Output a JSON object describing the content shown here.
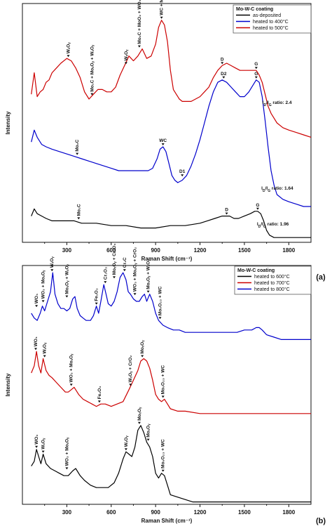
{
  "chart_data": [
    {
      "type": "line",
      "panel": "(a)",
      "xlabel": "Raman Shift (cm⁻¹)",
      "ylabel": "Intensity",
      "xlim": [
        0,
        1950
      ],
      "x_ticks": [
        "300",
        "600",
        "900",
        "1200",
        "1500",
        "1800"
      ],
      "y_ticks": false,
      "legend": {
        "title": "Mo-W-C coating",
        "position": "top-right",
        "entries": [
          {
            "name": "as-deposited",
            "color": "#000000"
          },
          {
            "name": "heated to 400°C",
            "color": "#0000cc"
          },
          {
            "name": "heated to 500°C",
            "color": "#cc0000"
          }
        ]
      },
      "series": [
        {
          "name": "heated to 500°C",
          "color": "#cc0000",
          "x": [
            60,
            80,
            100,
            120,
            140,
            160,
            180,
            200,
            230,
            260,
            300,
            330,
            360,
            390,
            420,
            450,
            480,
            510,
            540,
            570,
            600,
            630,
            660,
            690,
            720,
            750,
            780,
            810,
            840,
            870,
            900,
            920,
            940,
            960,
            980,
            1000,
            1020,
            1040,
            1060,
            1080,
            1110,
            1140,
            1170,
            1200,
            1230,
            1260,
            1290,
            1320,
            1350,
            1380,
            1410,
            1440,
            1470,
            1500,
            1530,
            1560,
            1580,
            1600,
            1620,
            1640,
            1660,
            1680,
            1700,
            1720,
            1760,
            1800,
            1850,
            1900,
            1950
          ],
          "y": [
            0.62,
            0.71,
            0.61,
            0.63,
            0.64,
            0.67,
            0.68,
            0.71,
            0.73,
            0.75,
            0.77,
            0.76,
            0.73,
            0.69,
            0.63,
            0.6,
            0.62,
            0.64,
            0.64,
            0.63,
            0.63,
            0.65,
            0.7,
            0.74,
            0.78,
            0.76,
            0.78,
            0.81,
            0.77,
            0.78,
            0.83,
            0.9,
            0.93,
            0.91,
            0.84,
            0.72,
            0.64,
            0.62,
            0.6,
            0.59,
            0.59,
            0.59,
            0.6,
            0.61,
            0.63,
            0.65,
            0.69,
            0.72,
            0.74,
            0.75,
            0.74,
            0.73,
            0.72,
            0.72,
            0.72,
            0.72,
            0.72,
            0.7,
            0.67,
            0.62,
            0.57,
            0.54,
            0.52,
            0.5,
            0.48,
            0.47,
            0.46,
            0.45,
            0.44
          ]
        },
        {
          "name": "heated to 400°C",
          "color": "#0000cc",
          "x": [
            60,
            80,
            100,
            130,
            160,
            200,
            250,
            300,
            350,
            400,
            450,
            500,
            550,
            600,
            650,
            700,
            750,
            800,
            850,
            880,
            910,
            930,
            950,
            970,
            990,
            1010,
            1030,
            1050,
            1080,
            1110,
            1140,
            1170,
            1200,
            1230,
            1260,
            1290,
            1320,
            1350,
            1380,
            1410,
            1440,
            1470,
            1500,
            1530,
            1560,
            1580,
            1600,
            1620,
            1640,
            1660,
            1680,
            1700,
            1720,
            1760,
            1800,
            1850,
            1900,
            1950
          ],
          "y": [
            0.42,
            0.47,
            0.44,
            0.41,
            0.4,
            0.39,
            0.38,
            0.37,
            0.36,
            0.35,
            0.34,
            0.33,
            0.32,
            0.31,
            0.3,
            0.3,
            0.3,
            0.3,
            0.3,
            0.31,
            0.35,
            0.39,
            0.4,
            0.38,
            0.33,
            0.28,
            0.26,
            0.25,
            0.26,
            0.28,
            0.32,
            0.37,
            0.43,
            0.5,
            0.57,
            0.63,
            0.67,
            0.68,
            0.67,
            0.65,
            0.63,
            0.61,
            0.61,
            0.63,
            0.66,
            0.68,
            0.67,
            0.61,
            0.51,
            0.4,
            0.3,
            0.24,
            0.2,
            0.18,
            0.17,
            0.16,
            0.15,
            0.15
          ]
        },
        {
          "name": "as-deposited",
          "color": "#000000",
          "x": [
            60,
            80,
            100,
            130,
            160,
            200,
            250,
            300,
            350,
            400,
            450,
            500,
            600,
            700,
            800,
            900,
            1000,
            1100,
            1200,
            1250,
            1300,
            1350,
            1380,
            1400,
            1430,
            1460,
            1500,
            1540,
            1570,
            1590,
            1610,
            1630,
            1650,
            1670,
            1700,
            1750,
            1800,
            1850,
            1900,
            1950
          ],
          "y": [
            0.11,
            0.14,
            0.12,
            0.11,
            0.1,
            0.09,
            0.09,
            0.09,
            0.09,
            0.08,
            0.08,
            0.08,
            0.07,
            0.07,
            0.06,
            0.06,
            0.07,
            0.07,
            0.08,
            0.09,
            0.1,
            0.11,
            0.11,
            0.11,
            0.1,
            0.1,
            0.11,
            0.12,
            0.13,
            0.13,
            0.12,
            0.09,
            0.05,
            0.03,
            0.02,
            0.02,
            0.02,
            0.02,
            0.02,
            0.02
          ]
        }
      ],
      "annotations": [
        {
          "text": "WₓOᵧ",
          "x": 310,
          "y": 0.77
        },
        {
          "text": "Mo₂C + MoₓOᵧ + WₓOᵧ",
          "x": 470,
          "y": 0.61
        },
        {
          "text": "WₓOᵧ",
          "x": 700,
          "y": 0.74
        },
        {
          "text": "Mo₂C + MoO₂ + WO₃",
          "x": 790,
          "y": 0.81
        },
        {
          "text": "WC + MoₓOᵧ",
          "x": 940,
          "y": 0.93
        },
        {
          "text": "D",
          "x": 1350,
          "y": 0.74
        },
        {
          "text": "G",
          "x": 1580,
          "y": 0.72
        },
        {
          "text": "I_D/I_G ratio: 2.4",
          "x": 1820,
          "y": 0.58
        },
        {
          "text": "Mo₂C",
          "x": 370,
          "y": 0.36
        },
        {
          "text": "WC",
          "x": 950,
          "y": 0.4
        },
        {
          "text": "D1",
          "x": 1080,
          "y": 0.27
        },
        {
          "text": "D2",
          "x": 1360,
          "y": 0.68
        },
        {
          "text": "G",
          "x": 1580,
          "y": 0.68
        },
        {
          "text": "I_D/I_G ratio: 1.64",
          "x": 1830,
          "y": 0.22
        },
        {
          "text": "Mo₂C",
          "x": 380,
          "y": 0.09
        },
        {
          "text": "D",
          "x": 1380,
          "y": 0.11
        },
        {
          "text": "G",
          "x": 1590,
          "y": 0.13
        },
        {
          "text": "I_D/I_G ratio: 1.96",
          "x": 1800,
          "y": 0.07
        }
      ]
    },
    {
      "type": "line",
      "panel": "(b)",
      "xlabel": "Raman Shift (cm⁻¹)",
      "ylabel": "Intensity",
      "xlim": [
        0,
        1950
      ],
      "x_ticks": [
        "300",
        "600",
        "900",
        "1200",
        "1500",
        "1800"
      ],
      "y_ticks": false,
      "legend": {
        "title": "Mo-W-C coating",
        "position": "top-right",
        "entries": [
          {
            "name": "heated to 600°C",
            "color": "#000000"
          },
          {
            "name": "heated to 700°C",
            "color": "#cc0000"
          },
          {
            "name": "heated to 800°C",
            "color": "#0000cc"
          }
        ]
      },
      "series": [
        {
          "name": "heated to 800°C",
          "color": "#0000cc",
          "x": [
            60,
            80,
            100,
            120,
            135,
            150,
            170,
            190,
            205,
            220,
            240,
            260,
            280,
            300,
            320,
            340,
            355,
            370,
            390,
            410,
            430,
            460,
            480,
            500,
            515,
            530,
            550,
            565,
            580,
            600,
            620,
            640,
            660,
            680,
            700,
            715,
            730,
            750,
            770,
            790,
            810,
            825,
            840,
            860,
            880,
            900,
            920,
            950,
            980,
            1020,
            1060,
            1100,
            1150,
            1200,
            1250,
            1300,
            1350,
            1400,
            1450,
            1500,
            1550,
            1580,
            1600,
            1620,
            1650,
            1700,
            1750,
            1800,
            1850,
            1900,
            1950
          ],
          "y": [
            0.8,
            0.78,
            0.77,
            0.8,
            0.83,
            0.81,
            0.85,
            0.89,
            0.97,
            0.88,
            0.84,
            0.82,
            0.82,
            0.81,
            0.82,
            0.86,
            0.87,
            0.82,
            0.79,
            0.78,
            0.77,
            0.77,
            0.79,
            0.83,
            0.8,
            0.85,
            0.92,
            0.88,
            0.84,
            0.83,
            0.85,
            0.89,
            0.95,
            0.97,
            0.94,
            0.89,
            0.88,
            0.86,
            0.85,
            0.85,
            0.87,
            0.88,
            0.85,
            0.88,
            0.85,
            0.8,
            0.77,
            0.75,
            0.74,
            0.73,
            0.73,
            0.72,
            0.72,
            0.72,
            0.72,
            0.72,
            0.72,
            0.72,
            0.72,
            0.73,
            0.73,
            0.74,
            0.74,
            0.73,
            0.71,
            0.7,
            0.69,
            0.69,
            0.69,
            0.69,
            0.69
          ]
        },
        {
          "name": "heated to 700°C",
          "color": "#cc0000",
          "x": [
            60,
            80,
            95,
            110,
            125,
            140,
            160,
            180,
            200,
            230,
            260,
            290,
            310,
            330,
            350,
            380,
            410,
            440,
            470,
            500,
            530,
            560,
            600,
            640,
            680,
            720,
            750,
            780,
            800,
            820,
            840,
            860,
            880,
            900,
            920,
            940,
            960,
            980,
            1000,
            1050,
            1100,
            1200,
            1300,
            1400,
            1500,
            1600,
            1700,
            1800,
            1900,
            1950
          ],
          "y": [
            0.55,
            0.58,
            0.64,
            0.58,
            0.55,
            0.61,
            0.56,
            0.54,
            0.53,
            0.51,
            0.49,
            0.47,
            0.47,
            0.48,
            0.49,
            0.46,
            0.44,
            0.43,
            0.42,
            0.41,
            0.42,
            0.42,
            0.41,
            0.42,
            0.43,
            0.48,
            0.52,
            0.56,
            0.6,
            0.61,
            0.6,
            0.57,
            0.52,
            0.46,
            0.44,
            0.43,
            0.44,
            0.42,
            0.4,
            0.39,
            0.39,
            0.38,
            0.38,
            0.38,
            0.38,
            0.38,
            0.38,
            0.38,
            0.38,
            0.38
          ]
        },
        {
          "name": "heated to 600°C",
          "color": "#000000",
          "x": [
            60,
            80,
            95,
            110,
            125,
            140,
            160,
            190,
            220,
            250,
            280,
            310,
            340,
            360,
            390,
            420,
            460,
            500,
            540,
            580,
            620,
            650,
            680,
            700,
            720,
            740,
            760,
            780,
            800,
            820,
            840,
            860,
            880,
            900,
            920,
            940,
            960,
            980,
            1000,
            1050,
            1100,
            1150,
            1200,
            1300,
            1400,
            1500,
            1600,
            1700,
            1800,
            1900,
            1950
          ],
          "y": [
            0.16,
            0.18,
            0.23,
            0.2,
            0.17,
            0.21,
            0.17,
            0.15,
            0.14,
            0.13,
            0.12,
            0.12,
            0.14,
            0.15,
            0.12,
            0.1,
            0.08,
            0.07,
            0.07,
            0.07,
            0.09,
            0.13,
            0.19,
            0.22,
            0.21,
            0.2,
            0.24,
            0.31,
            0.33,
            0.3,
            0.26,
            0.24,
            0.2,
            0.13,
            0.11,
            0.13,
            0.12,
            0.08,
            0.04,
            0.03,
            0.02,
            0.01,
            0.01,
            0.01,
            0.01,
            0.01,
            0.01,
            0.01,
            0.01,
            0.01,
            0.01
          ]
        }
      ],
      "annotations": [
        {
          "text": "WO₃",
          "x": 95,
          "y": 0.82
        },
        {
          "text": "WO₃ + MoₓOᵧ",
          "x": 140,
          "y": 0.84
        },
        {
          "text": "WₓOᵧ",
          "x": 200,
          "y": 0.97
        },
        {
          "text": "MoₓOᵧ + WₓOᵧ",
          "x": 300,
          "y": 0.86
        },
        {
          "text": "Fe₂O₃",
          "x": 500,
          "y": 0.83
        },
        {
          "text": "Cr₂O₃",
          "x": 560,
          "y": 0.92
        },
        {
          "text": "MoₓOᵧ + Cr₂O₃",
          "x": 620,
          "y": 0.94
        },
        {
          "text": "Cr₂C",
          "x": 690,
          "y": 0.97
        },
        {
          "text": "WO₃ + MoₓOᵧ + CrO₂",
          "x": 760,
          "y": 0.87
        },
        {
          "text": "MoₓOᵧ + WₓOᵧ",
          "x": 850,
          "y": 0.88
        },
        {
          "text": "Mo₉O₂₃ + WC",
          "x": 930,
          "y": 0.77
        },
        {
          "text": "WO₃",
          "x": 90,
          "y": 0.64
        },
        {
          "text": "WₓOᵧ",
          "x": 150,
          "y": 0.61
        },
        {
          "text": "WO₃ + MoₓOᵧ",
          "x": 330,
          "y": 0.49
        },
        {
          "text": "Fe₂O₃",
          "x": 520,
          "y": 0.42
        },
        {
          "text": "WₓOᵧ + CrO₂",
          "x": 730,
          "y": 0.49
        },
        {
          "text": "MoₓOᵧ",
          "x": 810,
          "y": 0.61
        },
        {
          "text": "Mo₉O₂₃ + WC",
          "x": 950,
          "y": 0.44
        },
        {
          "text": "WO₃",
          "x": 95,
          "y": 0.23
        },
        {
          "text": "WₓOᵧ",
          "x": 140,
          "y": 0.21
        },
        {
          "text": "WO₃ + MoₓOᵧ",
          "x": 300,
          "y": 0.14
        },
        {
          "text": "WₓOᵧ",
          "x": 700,
          "y": 0.22
        },
        {
          "text": "MoₓOᵧ",
          "x": 790,
          "y": 0.33
        },
        {
          "text": "MoₓOᵧ",
          "x": 850,
          "y": 0.26
        },
        {
          "text": "Mo₉O₂₃ + WC",
          "x": 950,
          "y": 0.13
        }
      ]
    }
  ]
}
